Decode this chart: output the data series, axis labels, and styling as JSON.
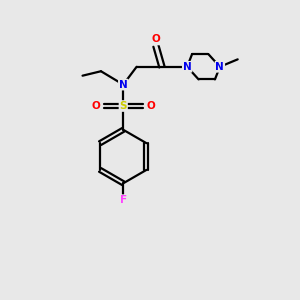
{
  "bg_color": "#e8e8e8",
  "bond_color": "#000000",
  "atom_colors": {
    "N": "#0000ee",
    "O": "#ff0000",
    "S": "#cccc00",
    "F": "#ff44ff",
    "C": "#000000"
  },
  "figsize": [
    3.0,
    3.0
  ],
  "dpi": 100
}
